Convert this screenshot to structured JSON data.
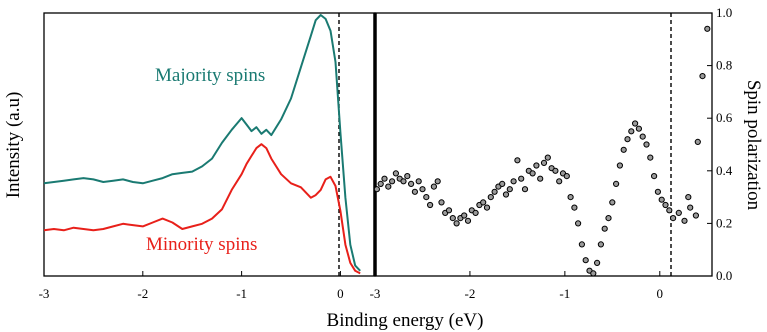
{
  "chart_data": [
    {
      "type": "line",
      "ylabel": "Intensity (a.u)",
      "xlim": [
        -3,
        0.35
      ],
      "xticks": [
        "-3",
        "-2",
        "-1",
        "0"
      ],
      "yticks": [],
      "zero_marker": 0,
      "series": [
        {
          "name": "Majority spins",
          "color": "#1a7a72",
          "x": [
            -3.0,
            -2.9,
            -2.8,
            -2.7,
            -2.6,
            -2.5,
            -2.4,
            -2.3,
            -2.2,
            -2.1,
            -2.0,
            -1.9,
            -1.8,
            -1.7,
            -1.6,
            -1.5,
            -1.4,
            -1.3,
            -1.2,
            -1.1,
            -1.0,
            -0.95,
            -0.9,
            -0.85,
            -0.8,
            -0.75,
            -0.7,
            -0.6,
            -0.5,
            -0.4,
            -0.3,
            -0.25,
            -0.2,
            -0.15,
            -0.1,
            -0.05,
            0.0,
            0.05,
            0.1,
            0.15,
            0.2
          ],
          "y": [
            0.355,
            0.36,
            0.365,
            0.37,
            0.375,
            0.37,
            0.36,
            0.365,
            0.37,
            0.36,
            0.355,
            0.365,
            0.375,
            0.39,
            0.395,
            0.4,
            0.42,
            0.45,
            0.51,
            0.56,
            0.605,
            0.58,
            0.555,
            0.57,
            0.545,
            0.56,
            0.54,
            0.6,
            0.68,
            0.8,
            0.92,
            0.98,
            1.0,
            0.985,
            0.94,
            0.82,
            0.55,
            0.3,
            0.12,
            0.04,
            0.02
          ]
        },
        {
          "name": "Minority spins",
          "color": "#e8201a",
          "x": [
            -3.0,
            -2.9,
            -2.8,
            -2.7,
            -2.6,
            -2.5,
            -2.4,
            -2.3,
            -2.2,
            -2.1,
            -2.0,
            -1.9,
            -1.8,
            -1.7,
            -1.6,
            -1.5,
            -1.4,
            -1.3,
            -1.2,
            -1.1,
            -1.0,
            -0.95,
            -0.9,
            -0.85,
            -0.8,
            -0.75,
            -0.7,
            -0.6,
            -0.5,
            -0.4,
            -0.3,
            -0.25,
            -0.2,
            -0.15,
            -0.1,
            -0.05,
            0.0,
            0.05,
            0.1,
            0.15,
            0.2
          ],
          "y": [
            0.175,
            0.18,
            0.175,
            0.185,
            0.18,
            0.175,
            0.18,
            0.19,
            0.2,
            0.195,
            0.19,
            0.205,
            0.22,
            0.205,
            0.18,
            0.19,
            0.2,
            0.22,
            0.255,
            0.33,
            0.39,
            0.43,
            0.46,
            0.49,
            0.505,
            0.49,
            0.45,
            0.39,
            0.355,
            0.34,
            0.3,
            0.31,
            0.33,
            0.37,
            0.38,
            0.345,
            0.25,
            0.12,
            0.05,
            0.02,
            0.01
          ]
        }
      ],
      "annotations": [
        {
          "text": "Majority spins",
          "color": "#1a7a72"
        },
        {
          "text": "Minority spins",
          "color": "#e8201a"
        }
      ]
    },
    {
      "type": "scatter",
      "xlabel": "Binding energy (eV)",
      "ylabel": "Spin polarization",
      "xlim": [
        -3,
        0.55
      ],
      "ylim": [
        0,
        1.0
      ],
      "xticks": [
        "-3",
        "-2",
        "-1",
        "0"
      ],
      "yticks": [
        "0.0",
        "0.2",
        "0.4",
        "0.6",
        "0.8",
        "1.0"
      ],
      "zero_marker": 0,
      "series": [
        {
          "color": "#000000",
          "x": [
            -2.98,
            -2.94,
            -2.9,
            -2.86,
            -2.82,
            -2.78,
            -2.74,
            -2.7,
            -2.66,
            -2.62,
            -2.58,
            -2.54,
            -2.5,
            -2.46,
            -2.42,
            -2.38,
            -2.34,
            -2.3,
            -2.26,
            -2.22,
            -2.18,
            -2.14,
            -2.1,
            -2.06,
            -2.02,
            -1.98,
            -1.94,
            -1.9,
            -1.86,
            -1.82,
            -1.78,
            -1.74,
            -1.7,
            -1.66,
            -1.62,
            -1.58,
            -1.54,
            -1.5,
            -1.46,
            -1.42,
            -1.38,
            -1.34,
            -1.3,
            -1.26,
            -1.22,
            -1.18,
            -1.14,
            -1.1,
            -1.06,
            -1.02,
            -0.98,
            -0.94,
            -0.9,
            -0.86,
            -0.82,
            -0.78,
            -0.74,
            -0.7,
            -0.66,
            -0.62,
            -0.58,
            -0.54,
            -0.5,
            -0.46,
            -0.42,
            -0.38,
            -0.34,
            -0.3,
            -0.26,
            -0.22,
            -0.18,
            -0.14,
            -0.1,
            -0.06,
            -0.02,
            0.02,
            0.06,
            0.1,
            0.14,
            0.2,
            0.26,
            0.32,
            0.38
          ],
          "y": [
            0.33,
            0.35,
            0.37,
            0.34,
            0.36,
            0.39,
            0.37,
            0.36,
            0.38,
            0.35,
            0.32,
            0.36,
            0.33,
            0.3,
            0.27,
            0.34,
            0.36,
            0.28,
            0.24,
            0.25,
            0.22,
            0.2,
            0.22,
            0.23,
            0.21,
            0.25,
            0.24,
            0.27,
            0.28,
            0.26,
            0.3,
            0.32,
            0.34,
            0.35,
            0.31,
            0.33,
            0.36,
            0.44,
            0.37,
            0.33,
            0.4,
            0.39,
            0.42,
            0.37,
            0.43,
            0.45,
            0.41,
            0.4,
            0.36,
            0.39,
            0.38,
            0.3,
            0.26,
            0.2,
            0.12,
            0.06,
            0.02,
            0.01,
            0.05,
            0.12,
            0.18,
            0.22,
            0.28,
            0.35,
            0.42,
            0.48,
            0.52,
            0.55,
            0.58,
            0.56,
            0.53,
            0.5,
            0.45,
            0.38,
            0.32,
            0.29,
            0.27,
            0.25,
            0.22,
            0.24,
            0.21,
            0.26,
            0.23
          ]
        },
        {
          "color": "#000000",
          "x": [
            0.4,
            0.45,
            0.5,
            0.3
          ],
          "y": [
            0.51,
            0.76,
            0.94,
            0.3
          ]
        }
      ]
    }
  ],
  "figure": {
    "shared_xlabel": "Binding energy (eV)"
  }
}
